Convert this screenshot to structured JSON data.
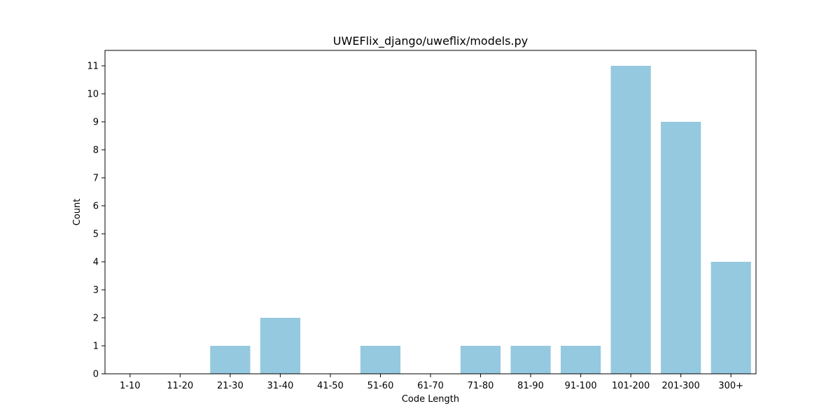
{
  "chart_data": {
    "type": "bar",
    "title": "UWEFlix_django/uweflix/models.py",
    "xlabel": "Code Length",
    "ylabel": "Count",
    "categories": [
      "1-10",
      "11-20",
      "21-30",
      "31-40",
      "41-50",
      "51-60",
      "61-70",
      "71-80",
      "81-90",
      "91-100",
      "101-200",
      "201-300",
      "300+"
    ],
    "values": [
      0,
      0,
      1,
      2,
      0,
      1,
      0,
      1,
      1,
      1,
      11,
      9,
      4
    ],
    "yticks": [
      0,
      1,
      2,
      3,
      4,
      5,
      6,
      7,
      8,
      9,
      10,
      11
    ],
    "ylim": [
      0,
      11.55
    ],
    "grid": false,
    "bar_color": "#95c9df"
  }
}
